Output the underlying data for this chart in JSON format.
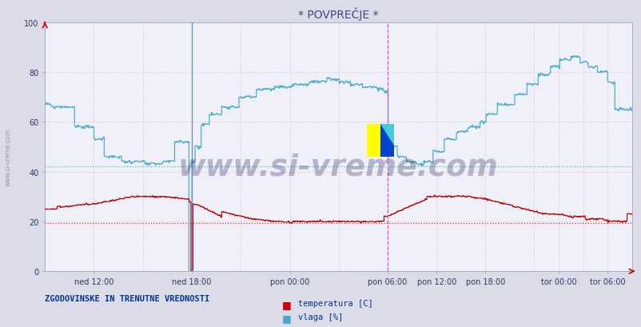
{
  "title": "* POVPREČJE *",
  "title_color": "#444488",
  "bg_color": "#dcdce8",
  "plot_bg_color": "#f0f0f8",
  "ylabel_color": "#333366",
  "xlabel_color": "#333366",
  "grid_v_color": "#e8c8c8",
  "grid_h_color": "#e8c8c8",
  "temp_color": "#bb0000",
  "hum_color": "#44aacc",
  "avg_temp": 19.5,
  "avg_hum": 42.0,
  "avg_temp_color": "#cc2222",
  "avg_hum_color": "#44aacc",
  "vline1_color": "#6688bb",
  "vline2_color": "#cc55cc",
  "watermark": "www.si-vreme.com",
  "watermark_color": "#1a1a5e",
  "watermark_alpha": 0.28,
  "side_label": "www.si-vreme.com",
  "side_label_color": "#999999",
  "footer_left": "ZGODOVINSKE IN TRENUTNE VREDNOSTI",
  "footer_left_color": "#003399",
  "legend_items": [
    "temperatura [C]",
    "vlaga [%]"
  ],
  "legend_colors": [
    "#cc0000",
    "#44aacc"
  ],
  "xlabels": [
    "ned 12:00",
    "ned 18:00",
    "pon 00:00",
    "pon 06:00",
    "pon 12:00",
    "pon 18:00",
    "tor 00:00",
    "tor 06:00"
  ],
  "yticks": [
    0,
    20,
    40,
    60,
    80,
    100
  ],
  "ylim": [
    0,
    100
  ],
  "n": 576
}
